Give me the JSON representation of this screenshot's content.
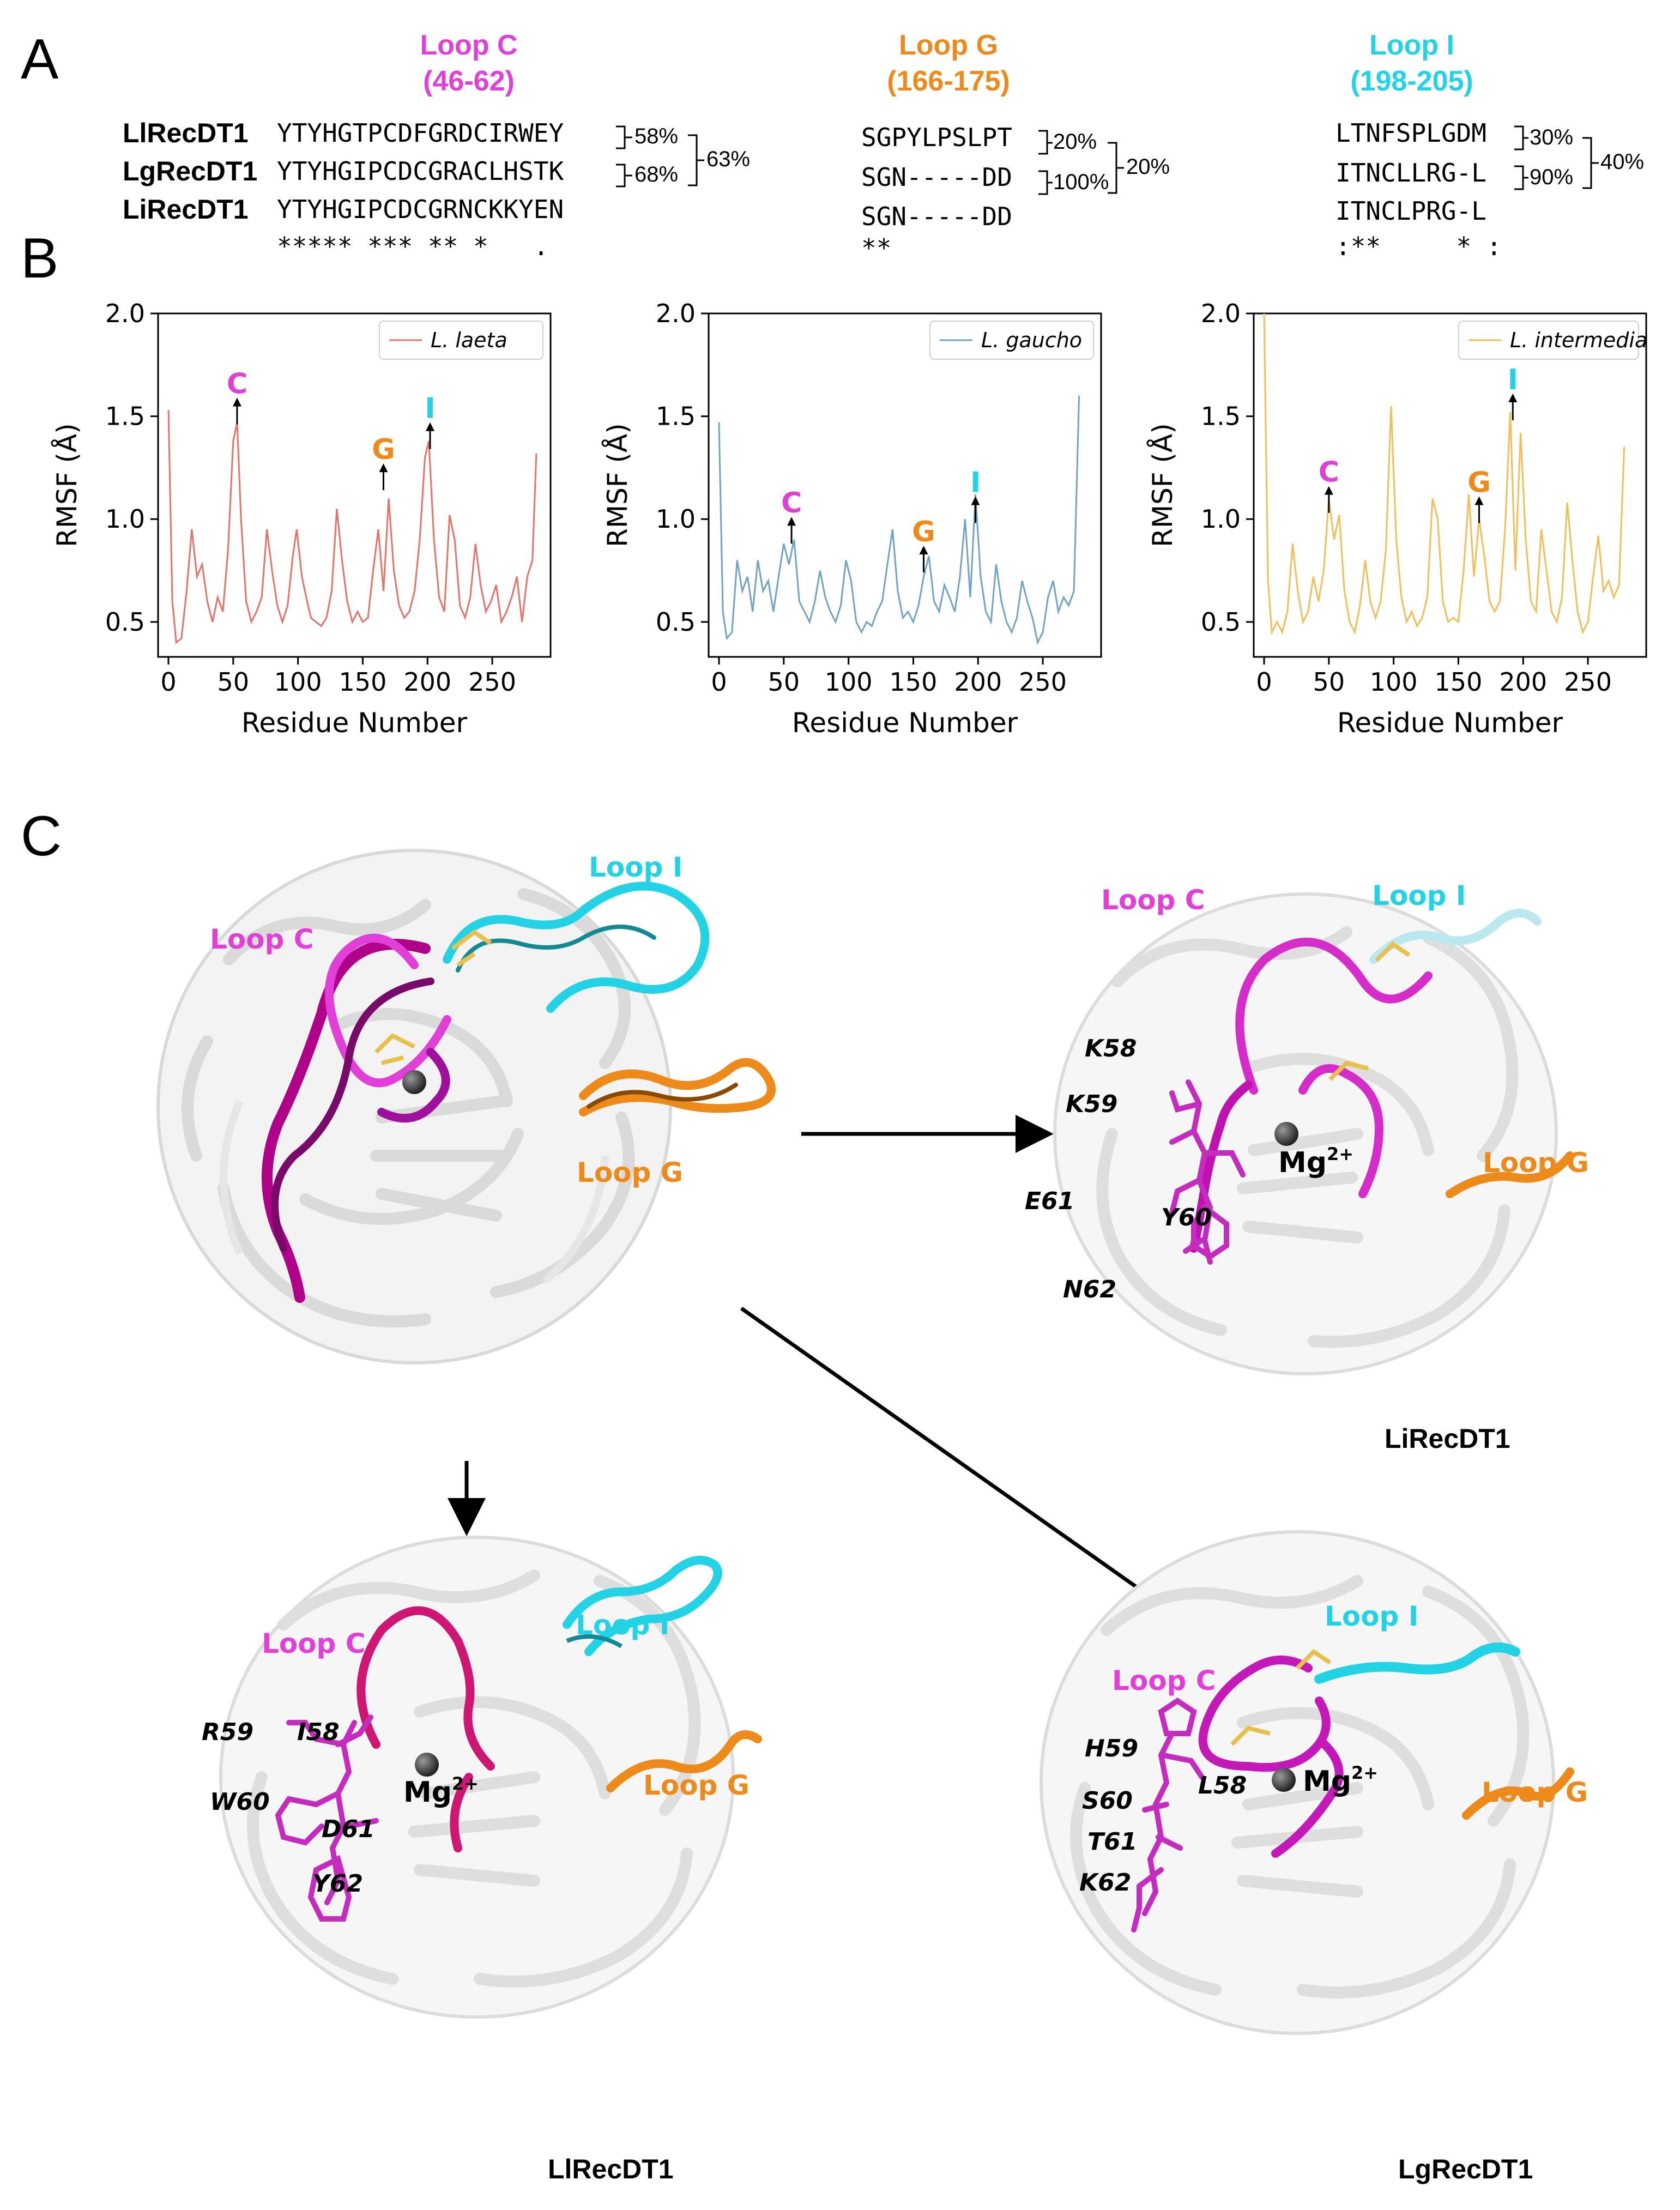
{
  "panels": {
    "a": "A",
    "b": "B",
    "c": "C"
  },
  "colors": {
    "loop_c": "#e23fd8",
    "loop_g": "#ee8a1a",
    "loop_i": "#22d3e6",
    "laeta": "#e8726a",
    "gaucho": "#6fa3c8",
    "intermedia": "#f2be55"
  },
  "alignment": {
    "names": [
      "LlRecDT1",
      "LgRecDT1",
      "LiRecDT1"
    ],
    "loops": [
      {
        "title": "Loop C",
        "range": "(46-62)",
        "seqs": [
          "YTYHGTPCDFGRDCIRWEY",
          "YTYHGIPCDCGRACLHSTK",
          "YTYHGIPCDCGRNCKKYEN"
        ],
        "conservation": "***** *** ** *   .",
        "pct_pair": [
          "58%",
          "68%"
        ],
        "pct_outer": "63%"
      },
      {
        "title": "Loop G",
        "range": "(166-175)",
        "seqs": [
          "SGPYLPSLPT",
          "SGN-----DD",
          "SGN-----DD"
        ],
        "conservation": "**",
        "pct_pair": [
          "20%",
          "100%"
        ],
        "pct_outer": "20%"
      },
      {
        "title": "Loop I",
        "range": "(198-205)",
        "seqs": [
          "LTNFSPLGDM",
          "ITNCLLRG-L",
          "ITNCLPRG-L"
        ],
        "conservation": ":**     * :",
        "pct_pair": [
          "30%",
          "90%"
        ],
        "pct_outer": "40%"
      }
    ]
  },
  "chart_data": [
    {
      "type": "line",
      "legend": "L. laeta",
      "ylabel": "RMSF (Å)",
      "xlabel": "Residue Number",
      "ylim": [
        0.33,
        2.0
      ],
      "xlim": [
        -8,
        295
      ],
      "yticks": [
        "0.5",
        "1.0",
        "1.5",
        "2.0"
      ],
      "xticks": [
        "0",
        "50",
        "100",
        "150",
        "200",
        "250"
      ],
      "points": [
        [
          0,
          1.53
        ],
        [
          3,
          0.6
        ],
        [
          6,
          0.4
        ],
        [
          10,
          0.42
        ],
        [
          14,
          0.65
        ],
        [
          18,
          0.95
        ],
        [
          22,
          0.72
        ],
        [
          26,
          0.78
        ],
        [
          30,
          0.6
        ],
        [
          34,
          0.5
        ],
        [
          38,
          0.62
        ],
        [
          42,
          0.55
        ],
        [
          46,
          0.85
        ],
        [
          50,
          1.38
        ],
        [
          53,
          1.47
        ],
        [
          56,
          1.0
        ],
        [
          60,
          0.6
        ],
        [
          64,
          0.5
        ],
        [
          68,
          0.55
        ],
        [
          72,
          0.62
        ],
        [
          76,
          0.95
        ],
        [
          80,
          0.75
        ],
        [
          84,
          0.58
        ],
        [
          88,
          0.5
        ],
        [
          92,
          0.58
        ],
        [
          96,
          0.82
        ],
        [
          99,
          0.95
        ],
        [
          103,
          0.72
        ],
        [
          107,
          0.6
        ],
        [
          110,
          0.52
        ],
        [
          114,
          0.5
        ],
        [
          118,
          0.48
        ],
        [
          122,
          0.52
        ],
        [
          126,
          0.65
        ],
        [
          130,
          1.05
        ],
        [
          134,
          0.8
        ],
        [
          138,
          0.6
        ],
        [
          142,
          0.5
        ],
        [
          146,
          0.55
        ],
        [
          150,
          0.5
        ],
        [
          154,
          0.52
        ],
        [
          158,
          0.75
        ],
        [
          162,
          0.95
        ],
        [
          166,
          0.65
        ],
        [
          170,
          1.1
        ],
        [
          174,
          0.75
        ],
        [
          178,
          0.58
        ],
        [
          182,
          0.52
        ],
        [
          186,
          0.55
        ],
        [
          190,
          0.65
        ],
        [
          194,
          0.9
        ],
        [
          198,
          1.3
        ],
        [
          201,
          1.38
        ],
        [
          205,
          0.9
        ],
        [
          209,
          0.62
        ],
        [
          213,
          0.55
        ],
        [
          217,
          1.02
        ],
        [
          221,
          0.9
        ],
        [
          225,
          0.58
        ],
        [
          229,
          0.52
        ],
        [
          233,
          0.62
        ],
        [
          237,
          0.88
        ],
        [
          241,
          0.68
        ],
        [
          245,
          0.55
        ],
        [
          249,
          0.6
        ],
        [
          253,
          0.68
        ],
        [
          257,
          0.5
        ],
        [
          261,
          0.55
        ],
        [
          265,
          0.62
        ],
        [
          269,
          0.72
        ],
        [
          273,
          0.5
        ],
        [
          277,
          0.72
        ],
        [
          281,
          0.8
        ],
        [
          284,
          1.32
        ]
      ],
      "annotations": [
        {
          "label": "C",
          "x": 53,
          "y": 1.58,
          "color": "#e23fd8"
        },
        {
          "label": "G",
          "x": 166,
          "y": 1.26,
          "color": "#ee8a1a"
        },
        {
          "label": "I",
          "x": 202,
          "y": 1.46,
          "color": "#22d3e6"
        }
      ]
    },
    {
      "type": "line",
      "legend": "L. gaucho",
      "ylabel": "RMSF (Å)",
      "xlabel": "Residue Number",
      "ylim": [
        0.33,
        2.0
      ],
      "xlim": [
        -8,
        295
      ],
      "yticks": [
        "0.5",
        "1.0",
        "1.5",
        "2.0"
      ],
      "xticks": [
        "0",
        "50",
        "100",
        "150",
        "200",
        "250"
      ],
      "points": [
        [
          0,
          1.47
        ],
        [
          3,
          0.55
        ],
        [
          6,
          0.42
        ],
        [
          10,
          0.45
        ],
        [
          14,
          0.8
        ],
        [
          18,
          0.65
        ],
        [
          22,
          0.72
        ],
        [
          26,
          0.55
        ],
        [
          30,
          0.8
        ],
        [
          34,
          0.65
        ],
        [
          38,
          0.7
        ],
        [
          42,
          0.55
        ],
        [
          46,
          0.72
        ],
        [
          50,
          0.88
        ],
        [
          54,
          0.78
        ],
        [
          58,
          0.9
        ],
        [
          62,
          0.6
        ],
        [
          66,
          0.55
        ],
        [
          70,
          0.5
        ],
        [
          74,
          0.6
        ],
        [
          78,
          0.75
        ],
        [
          82,
          0.62
        ],
        [
          86,
          0.55
        ],
        [
          90,
          0.5
        ],
        [
          94,
          0.58
        ],
        [
          98,
          0.8
        ],
        [
          102,
          0.7
        ],
        [
          106,
          0.5
        ],
        [
          110,
          0.45
        ],
        [
          114,
          0.5
        ],
        [
          118,
          0.48
        ],
        [
          122,
          0.55
        ],
        [
          126,
          0.6
        ],
        [
          130,
          0.78
        ],
        [
          134,
          0.95
        ],
        [
          138,
          0.65
        ],
        [
          142,
          0.52
        ],
        [
          146,
          0.55
        ],
        [
          150,
          0.5
        ],
        [
          154,
          0.58
        ],
        [
          158,
          0.72
        ],
        [
          162,
          0.82
        ],
        [
          166,
          0.6
        ],
        [
          170,
          0.55
        ],
        [
          174,
          0.68
        ],
        [
          178,
          0.62
        ],
        [
          182,
          0.55
        ],
        [
          186,
          0.72
        ],
        [
          190,
          1.0
        ],
        [
          194,
          0.62
        ],
        [
          198,
          1.12
        ],
        [
          202,
          0.72
        ],
        [
          206,
          0.55
        ],
        [
          210,
          0.5
        ],
        [
          214,
          0.78
        ],
        [
          218,
          0.6
        ],
        [
          222,
          0.5
        ],
        [
          226,
          0.45
        ],
        [
          230,
          0.52
        ],
        [
          234,
          0.7
        ],
        [
          238,
          0.6
        ],
        [
          242,
          0.52
        ],
        [
          246,
          0.4
        ],
        [
          250,
          0.45
        ],
        [
          254,
          0.62
        ],
        [
          258,
          0.7
        ],
        [
          262,
          0.55
        ],
        [
          266,
          0.62
        ],
        [
          270,
          0.58
        ],
        [
          274,
          0.65
        ],
        [
          278,
          1.6
        ]
      ],
      "annotations": [
        {
          "label": "C",
          "x": 56,
          "y": 1.0,
          "color": "#e23fd8"
        },
        {
          "label": "G",
          "x": 158,
          "y": 0.86,
          "color": "#ee8a1a"
        },
        {
          "label": "I",
          "x": 198,
          "y": 1.1,
          "color": "#22d3e6"
        }
      ]
    },
    {
      "type": "line",
      "legend": "L. intermedia",
      "ylabel": "RMSF (Å)",
      "xlabel": "Residue Number",
      "ylim": [
        0.33,
        2.0
      ],
      "xlim": [
        -8,
        295
      ],
      "yticks": [
        "0.5",
        "1.0",
        "1.5",
        "2.0"
      ],
      "xticks": [
        "0",
        "50",
        "100",
        "150",
        "200",
        "250"
      ],
      "points": [
        [
          0,
          2.0
        ],
        [
          3,
          0.7
        ],
        [
          6,
          0.45
        ],
        [
          10,
          0.5
        ],
        [
          14,
          0.45
        ],
        [
          18,
          0.55
        ],
        [
          22,
          0.88
        ],
        [
          26,
          0.65
        ],
        [
          30,
          0.5
        ],
        [
          34,
          0.55
        ],
        [
          38,
          0.72
        ],
        [
          42,
          0.6
        ],
        [
          46,
          0.75
        ],
        [
          50,
          1.1
        ],
        [
          54,
          0.9
        ],
        [
          58,
          1.02
        ],
        [
          62,
          0.65
        ],
        [
          66,
          0.5
        ],
        [
          70,
          0.45
        ],
        [
          74,
          0.58
        ],
        [
          78,
          0.8
        ],
        [
          82,
          0.6
        ],
        [
          86,
          0.52
        ],
        [
          90,
          0.6
        ],
        [
          94,
          0.85
        ],
        [
          98,
          1.55
        ],
        [
          102,
          0.9
        ],
        [
          106,
          0.62
        ],
        [
          110,
          0.5
        ],
        [
          114,
          0.55
        ],
        [
          118,
          0.48
        ],
        [
          122,
          0.52
        ],
        [
          126,
          0.62
        ],
        [
          130,
          1.1
        ],
        [
          134,
          1.0
        ],
        [
          138,
          0.6
        ],
        [
          142,
          0.5
        ],
        [
          146,
          0.52
        ],
        [
          150,
          0.5
        ],
        [
          154,
          0.75
        ],
        [
          158,
          1.12
        ],
        [
          162,
          0.72
        ],
        [
          166,
          1.0
        ],
        [
          170,
          0.82
        ],
        [
          174,
          0.6
        ],
        [
          178,
          0.55
        ],
        [
          182,
          0.6
        ],
        [
          186,
          0.95
        ],
        [
          190,
          1.52
        ],
        [
          194,
          0.75
        ],
        [
          198,
          1.42
        ],
        [
          202,
          0.9
        ],
        [
          206,
          0.6
        ],
        [
          210,
          0.55
        ],
        [
          214,
          0.95
        ],
        [
          218,
          0.75
        ],
        [
          222,
          0.55
        ],
        [
          226,
          0.5
        ],
        [
          230,
          0.62
        ],
        [
          234,
          1.08
        ],
        [
          238,
          0.8
        ],
        [
          242,
          0.55
        ],
        [
          246,
          0.45
        ],
        [
          250,
          0.5
        ],
        [
          254,
          0.72
        ],
        [
          258,
          0.92
        ],
        [
          262,
          0.65
        ],
        [
          266,
          0.7
        ],
        [
          270,
          0.62
        ],
        [
          274,
          0.68
        ],
        [
          278,
          1.35
        ]
      ],
      "annotations": [
        {
          "label": "C",
          "x": 50,
          "y": 1.15,
          "color": "#e23fd8"
        },
        {
          "label": "G",
          "x": 166,
          "y": 1.1,
          "color": "#ee8a1a"
        },
        {
          "label": "I",
          "x": 192,
          "y": 1.6,
          "color": "#22d3e6"
        }
      ]
    }
  ],
  "structures": {
    "overlay": {
      "loop_i": "Loop I",
      "loop_c": "Loop C",
      "loop_g": "Loop G"
    },
    "li": {
      "name": "LiRecDT1",
      "loop_c": "Loop C",
      "loop_i": "Loop I",
      "loop_g": "Loop G",
      "mg_base": "Mg",
      "mg_sup": "2+",
      "residues": [
        "K58",
        "K59",
        "E61",
        "Y60",
        "N62"
      ]
    },
    "ll": {
      "name": "LlRecDT1",
      "loop_c": "Loop C",
      "loop_i": "Loop I",
      "loop_g": "Loop G",
      "mg_base": "Mg",
      "mg_sup": "2+",
      "residues": [
        "R59",
        "I58",
        "W60",
        "D61",
        "Y62"
      ]
    },
    "lg": {
      "name": "LgRecDT1",
      "loop_c": "Loop C",
      "loop_i": "Loop I",
      "loop_g": "Loop G",
      "mg_base": "Mg",
      "mg_sup": "2+",
      "residues": [
        "H59",
        "L58",
        "S60",
        "T61",
        "K62"
      ]
    }
  }
}
